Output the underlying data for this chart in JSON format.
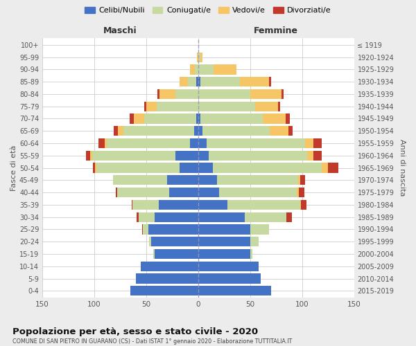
{
  "age_groups": [
    "0-4",
    "5-9",
    "10-14",
    "15-19",
    "20-24",
    "25-29",
    "30-34",
    "35-39",
    "40-44",
    "45-49",
    "50-54",
    "55-59",
    "60-64",
    "65-69",
    "70-74",
    "75-79",
    "80-84",
    "85-89",
    "90-94",
    "95-99",
    "100+"
  ],
  "birth_years": [
    "2015-2019",
    "2010-2014",
    "2005-2009",
    "2000-2004",
    "1995-1999",
    "1990-1994",
    "1985-1989",
    "1980-1984",
    "1975-1979",
    "1970-1974",
    "1965-1969",
    "1960-1964",
    "1955-1959",
    "1950-1954",
    "1945-1949",
    "1940-1944",
    "1935-1939",
    "1930-1934",
    "1925-1929",
    "1920-1924",
    "≤ 1919"
  ],
  "males_celibe": [
    65,
    60,
    55,
    42,
    45,
    48,
    42,
    38,
    28,
    30,
    18,
    22,
    8,
    4,
    2,
    0,
    0,
    2,
    0,
    0,
    0
  ],
  "males_coniugato": [
    0,
    0,
    0,
    1,
    2,
    5,
    15,
    25,
    50,
    52,
    80,
    80,
    80,
    68,
    50,
    40,
    22,
    8,
    3,
    0,
    0
  ],
  "males_vedovo": [
    0,
    0,
    0,
    0,
    0,
    0,
    0,
    0,
    0,
    0,
    1,
    2,
    2,
    5,
    10,
    10,
    15,
    8,
    5,
    1,
    0
  ],
  "males_divorziato": [
    0,
    0,
    0,
    0,
    0,
    1,
    2,
    1,
    1,
    0,
    2,
    4,
    6,
    4,
    4,
    2,
    2,
    0,
    0,
    0,
    0
  ],
  "females_nubile": [
    70,
    60,
    58,
    50,
    50,
    50,
    45,
    28,
    20,
    18,
    14,
    10,
    8,
    4,
    2,
    0,
    0,
    2,
    0,
    0,
    0
  ],
  "females_coniugata": [
    0,
    0,
    0,
    2,
    8,
    18,
    40,
    70,
    75,
    78,
    105,
    95,
    95,
    65,
    60,
    55,
    50,
    38,
    15,
    2,
    0
  ],
  "females_vedova": [
    0,
    0,
    0,
    0,
    0,
    0,
    0,
    1,
    2,
    2,
    6,
    6,
    8,
    18,
    22,
    22,
    30,
    28,
    22,
    2,
    0
  ],
  "females_divorziata": [
    0,
    0,
    0,
    0,
    0,
    0,
    5,
    5,
    5,
    5,
    10,
    8,
    8,
    4,
    4,
    2,
    2,
    2,
    0,
    0,
    0
  ],
  "colors_celibe": "#4472c4",
  "colors_coniugato": "#c5d9a0",
  "colors_vedovo": "#f5c566",
  "colors_divorziato": "#c0392b",
  "xlim": 150,
  "title": "Popolazione per età, sesso e stato civile - 2020",
  "subtitle": "COMUNE DI SAN PIETRO IN GUARANO (CS) - Dati ISTAT 1° gennaio 2020 - Elaborazione TUTTITALIA.IT",
  "ylabel_left": "Fasce di età",
  "ylabel_right": "Anni di nascita",
  "label_maschi": "Maschi",
  "label_femmine": "Femmine",
  "legend_labels": [
    "Celibi/Nubili",
    "Coniugati/e",
    "Vedovi/e",
    "Divorziati/e"
  ],
  "bg_color": "#ececec",
  "plot_bg": "#ffffff"
}
